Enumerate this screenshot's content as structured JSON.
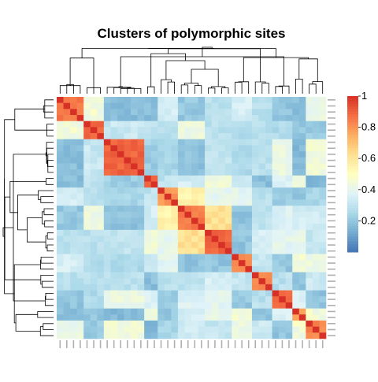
{
  "chart_data": {
    "type": "heatmap",
    "title": "Clusters of polymorphic sites",
    "xlabel": "",
    "ylabel": "",
    "color_scale": {
      "min": 0,
      "max": 1,
      "ticks": [
        0.2,
        0.4,
        0.6,
        0.8,
        1
      ],
      "tick_labels": [
        "0.2",
        "0.4",
        "0.6",
        "0.8",
        "1"
      ],
      "palette": [
        "#4575b4",
        "#74add1",
        "#abd9e9",
        "#e0f3f8",
        "#ffffbf",
        "#fee090",
        "#fdae61",
        "#f46d43",
        "#d73027"
      ]
    },
    "n_sites": 40,
    "site_labels_note": "row and column labels are unreadably small in the original",
    "clusters": [
      {
        "sites": 4,
        "within": 0.88,
        "to_next": 0.45
      },
      {
        "sites": 3,
        "within": 0.93,
        "to_next": 0.32
      },
      {
        "sites": 6,
        "within": 0.92,
        "to_next": 0.22
      },
      {
        "sites": 2,
        "within": 0.9,
        "to_next": 0.3
      },
      {
        "sites": 3,
        "within": 0.82,
        "to_next": 0.55
      },
      {
        "sites": 4,
        "within": 0.88,
        "to_next": 0.62
      },
      {
        "sites": 4,
        "within": 0.92,
        "to_next": 0.2
      },
      {
        "sites": 3,
        "within": 0.82,
        "to_next": 0.3
      },
      {
        "sites": 3,
        "within": 0.85,
        "to_next": 0.28
      },
      {
        "sites": 3,
        "within": 0.9,
        "to_next": 0.35
      },
      {
        "sites": 2,
        "within": 0.8,
        "to_next": 0.45
      },
      {
        "sites": 3,
        "within": 0.85,
        "to_next": 0.25
      }
    ],
    "background_similarity": [
      0.15,
      0.45
    ],
    "dendrograms": [
      "top",
      "left"
    ],
    "legend_position": "right"
  }
}
